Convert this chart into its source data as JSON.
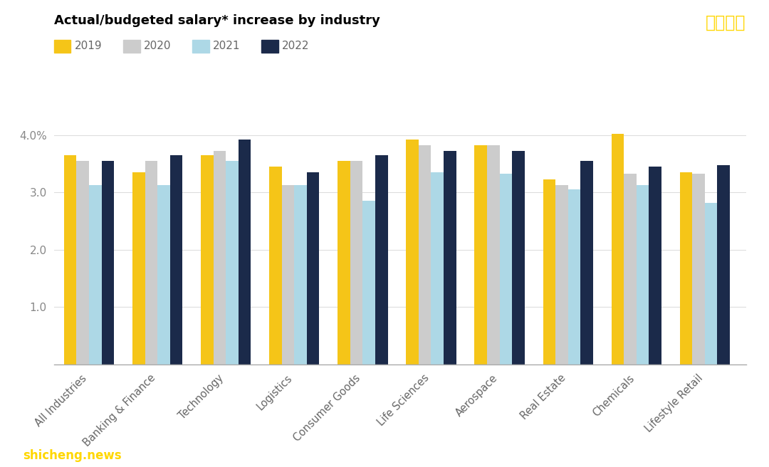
{
  "title": "Actual/budgeted salary* increase by industry",
  "categories": [
    "All Industries",
    "Banking & Finance",
    "Technology",
    "Logistics",
    "Consumer Goods",
    "Life Sciences",
    "Aerospace",
    "Real Estate",
    "Chemicals",
    "Lifestyle Retail"
  ],
  "years": [
    "2019",
    "2020",
    "2021",
    "2022"
  ],
  "colors": [
    "#F5C518",
    "#CCCCCC",
    "#ADD8E6",
    "#1B2A4A"
  ],
  "values": {
    "2019": [
      3.65,
      3.35,
      3.65,
      3.45,
      3.55,
      3.92,
      3.82,
      3.22,
      4.02,
      3.35
    ],
    "2020": [
      3.55,
      3.55,
      3.72,
      3.12,
      3.55,
      3.82,
      3.82,
      3.12,
      3.32,
      3.32
    ],
    "2021": [
      3.12,
      3.12,
      3.55,
      3.12,
      2.85,
      3.35,
      3.32,
      3.05,
      3.12,
      2.82
    ],
    "2022": [
      3.55,
      3.65,
      3.92,
      3.35,
      3.65,
      3.72,
      3.72,
      3.55,
      3.45,
      3.48
    ]
  },
  "ylim": [
    0,
    4.4
  ],
  "yticks": [
    1.0,
    2.0,
    3.0,
    4.0
  ],
  "ytick_labels": [
    "1.0",
    "2.0",
    "3.0",
    "4.0%"
  ],
  "background_color": "#FFFFFF",
  "watermark_text": "狮城新闻",
  "watermark_color": "#FFD700",
  "footer_text": "shicheng.news",
  "footer_color": "#FFD700"
}
